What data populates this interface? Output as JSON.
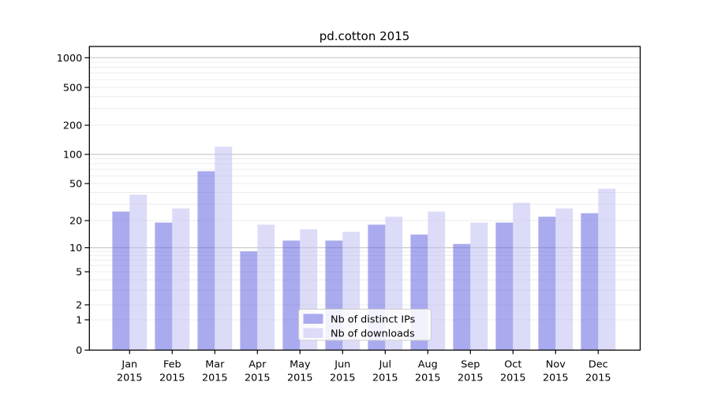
{
  "title": "pd.cotton 2015",
  "chart_data": {
    "type": "bar",
    "categories": [
      [
        "Jan",
        "2015"
      ],
      [
        "Feb",
        "2015"
      ],
      [
        "Mar",
        "2015"
      ],
      [
        "Apr",
        "2015"
      ],
      [
        "May",
        "2015"
      ],
      [
        "Jun",
        "2015"
      ],
      [
        "Jul",
        "2015"
      ],
      [
        "Aug",
        "2015"
      ],
      [
        "Sep",
        "2015"
      ],
      [
        "Oct",
        "2015"
      ],
      [
        "Nov",
        "2015"
      ],
      [
        "Dec",
        "2015"
      ]
    ],
    "series": [
      {
        "name": "Nb of distinct IPs",
        "color": "#aaaaee",
        "values": [
          25,
          19,
          67,
          9,
          12,
          12,
          18,
          14,
          11,
          19,
          22,
          24
        ]
      },
      {
        "name": "Nb of downloads",
        "color": "#dcdcf8",
        "values": [
          38,
          27,
          120,
          18,
          16,
          15,
          22,
          25,
          19,
          31,
          27,
          44
        ]
      }
    ],
    "ylabel": "",
    "xlabel": "",
    "yscale": "symlog",
    "yticks": [
      0,
      1,
      2,
      5,
      10,
      20,
      50,
      100,
      200,
      500,
      1000
    ],
    "ylim": [
      0,
      1500
    ],
    "grid": true,
    "legend_position": "lower center",
    "colors": {
      "grid_major": "#c9c9c9",
      "grid_minor": "#ececec",
      "spine": "#000000"
    }
  }
}
